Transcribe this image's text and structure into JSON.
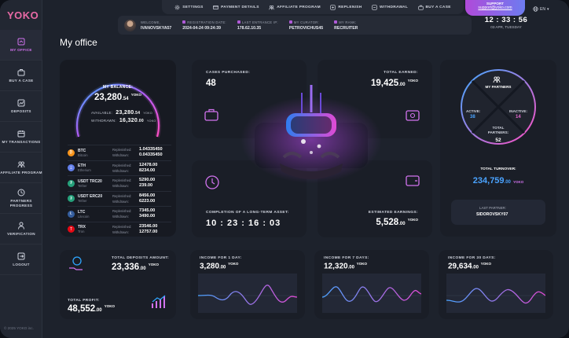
{
  "brand": {
    "logo": "YOKO",
    "copyright": "© 2025 YOKO inc."
  },
  "sidebar": {
    "items": [
      {
        "label": "MY OFFICE",
        "icon": "office-icon",
        "active": true
      },
      {
        "label": "BUY A CASE",
        "icon": "case-icon"
      },
      {
        "label": "DEPOSITS",
        "icon": "chart-icon"
      },
      {
        "label": "MY TRANSACTIONS",
        "icon": "calendar-icon"
      },
      {
        "label": "AFFILIATE PROGRAM",
        "icon": "users-icon"
      },
      {
        "label": "PARTNERS PROGRESS",
        "icon": "progress-icon"
      },
      {
        "label": "VERIFICATION",
        "icon": "person-icon"
      },
      {
        "label": "LOGOUT",
        "icon": "logout-icon"
      }
    ]
  },
  "topbar": {
    "links": [
      {
        "label": "SETTINGS",
        "icon": "gear-icon"
      },
      {
        "label": "PAYMENT DETAILS",
        "icon": "card-icon"
      },
      {
        "label": "AFFILIATE PROGRAM",
        "icon": "users-icon"
      },
      {
        "label": "REPLENISH",
        "icon": "plus-icon"
      },
      {
        "label": "WITHDRAWAL",
        "icon": "minus-icon"
      },
      {
        "label": "BUY A CASE",
        "icon": "case-icon"
      }
    ],
    "support": {
      "title": "SUPPORT",
      "email": "support@yoko.com"
    },
    "language": "EN"
  },
  "info": {
    "welcome_label": "WELCOME,",
    "username": "IVANOVSKYA57",
    "registration_label": "REGISTRATION DATE:",
    "registration_value": "2024-04-24 09:24:39",
    "last_entrance_label": "LAST ENTRANCE IP:",
    "last_entrance_value": "178.62.10.35",
    "curator_label": "MY CURATOR:",
    "curator_value": "PETROVICHUS45",
    "rank_label": "MY RANK:",
    "rank_value": "RECRUITER",
    "clock": "12 : 33 : 56",
    "date": "03 APR, TUESDAY"
  },
  "page": {
    "title": "My office"
  },
  "balance": {
    "title": "MY BALANCE:",
    "value_main": "23,280",
    "value_dec": ".54",
    "unit": "YOKO",
    "available_label": "AVAILABLE:",
    "available_main": "23,280",
    "available_dec": ".54",
    "withdrawn_label": "WITHDRAWN:",
    "withdrawn_main": "16,320",
    "withdrawn_dec": ".00",
    "coins": [
      {
        "sym": "BTC",
        "name": "Bitcoin",
        "color": "#f7931a",
        "glyph": "₿",
        "replenished": "1.04335450",
        "withdrawn": "0.04335450",
        "unit": "BTC"
      },
      {
        "sym": "ETH",
        "name": "Etherium",
        "color": "#627eea",
        "glyph": "Ξ",
        "replenished": "12478.00",
        "withdrawn": "8234.00",
        "unit": "ETH"
      },
      {
        "sym": "USDT TRC20",
        "name": "Tether",
        "color": "#26a17b",
        "glyph": "₮",
        "replenished": "5290.00",
        "withdrawn": "239.00",
        "unit": "TRC20"
      },
      {
        "sym": "USDT ERC20",
        "name": "Tether",
        "color": "#26a17b",
        "glyph": "₮",
        "replenished": "8456.00",
        "withdrawn": "6223.00",
        "unit": "ERC20"
      },
      {
        "sym": "LTC",
        "name": "Litecoin",
        "color": "#345d9d",
        "glyph": "Ł",
        "replenished": "7345.00",
        "withdrawn": "3490.00",
        "unit": "LTC"
      },
      {
        "sym": "TRX",
        "name": "Tron",
        "color": "#e50914",
        "glyph": "T",
        "replenished": "23546.00",
        "withdrawn": "12757.00",
        "unit": "TRX"
      }
    ],
    "replenished_label": "Replenished:",
    "withdrawn_row_label": "Withdrawn:"
  },
  "stats": {
    "cases_label": "CASES PURCHASED:",
    "cases_value": "48",
    "earned_label": "TOTAL EARNED:",
    "earned_main": "19,425",
    "earned_dec": ".00",
    "timer_label": "COMPLETION OF A LONG-TERM ASSET:",
    "timer_value": "10 : 23 : 16 : 03",
    "estimated_label": "ESTIMATED EARNINGS:",
    "estimated_main": "5,528",
    "estimated_dec": ".00",
    "unit": "YOKO"
  },
  "partners": {
    "title": "MY PARTNERS",
    "active_label": "ACTIVE:",
    "active_value": "38",
    "inactive_label": "INACTIVE:",
    "inactive_value": "14",
    "total_label": "TOTAL PARTNERS:",
    "total_value": "52",
    "turnover_label": "TOTAL TURNOVER:",
    "turnover_main": "234,759",
    "turnover_dec": ".00",
    "last_label": "LAST PARTNER:",
    "last_value": "SIDOROVSKY07"
  },
  "bottom": {
    "deposits_label": "TOTAL DEPOSITS AMOUNT:",
    "deposits_main": "23,336",
    "deposits_dec": ".00",
    "profit_label": "TOTAL PROFIT:",
    "profit_main": "48,552",
    "profit_dec": ".00",
    "income": [
      {
        "label": "INCOME FOR 1 DAY:",
        "main": "3,280",
        "dec": ".00"
      },
      {
        "label": "INCOME FOR 7 DAYS:",
        "main": "12,320",
        "dec": ".00"
      },
      {
        "label": "INCOME FOR 30 DAYS:",
        "main": "29,634",
        "dec": ".00"
      }
    ]
  },
  "colors": {
    "accent": "#c35cf0",
    "brand": "#e96aa6",
    "blue": "#4aa3ff"
  }
}
